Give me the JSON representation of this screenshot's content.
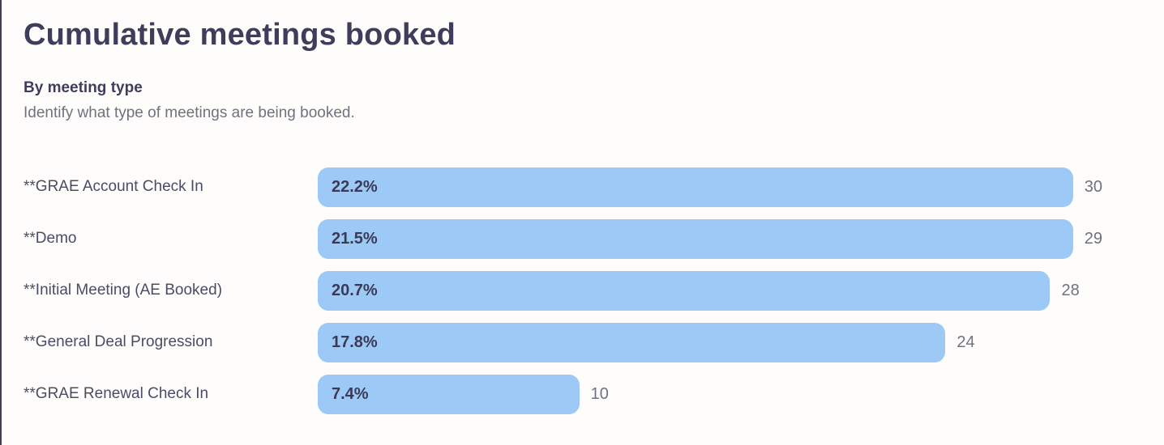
{
  "colors": {
    "background": "#fffdfb",
    "bar_fill": "#9dc9f6",
    "title_text": "#3e3d5c",
    "label_text": "#4c4b67",
    "muted_text": "#6f717e"
  },
  "header": {
    "title": "Cumulative meetings booked",
    "subtitle": "By meeting type",
    "description": "Identify what type of meetings are being booked."
  },
  "chart_data": {
    "type": "bar",
    "orientation": "horizontal",
    "title": "Cumulative meetings booked",
    "subtitle": "By meeting type",
    "description": "Identify what type of meetings are being booked.",
    "categories": [
      "**GRAE Account Check In",
      "**Demo",
      "**Initial Meeting (AE Booked)",
      "**General Deal Progression",
      "**GRAE Renewal Check In"
    ],
    "values": [
      30,
      29,
      28,
      24,
      10
    ],
    "percent_labels": [
      "22.2%",
      "21.5%",
      "20.7%",
      "17.8%",
      "7.4%"
    ],
    "max_value": 30,
    "value_axis_hidden": true,
    "grid": false,
    "legend": false,
    "bar_color": "#9dc9f6"
  }
}
